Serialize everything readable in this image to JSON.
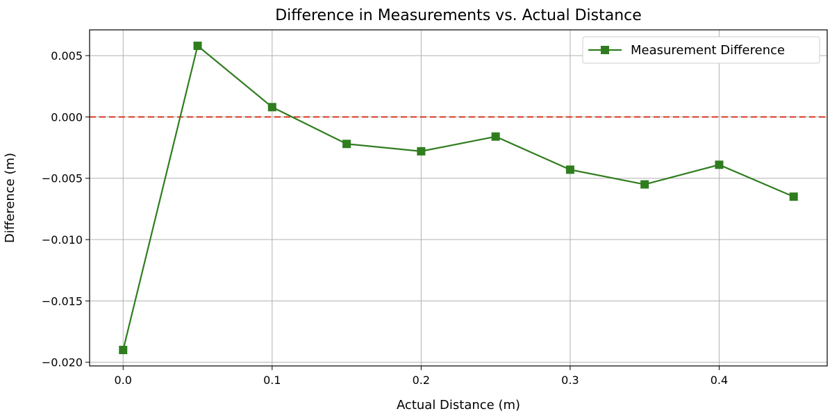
{
  "chart_data": {
    "type": "line",
    "title": "Difference in Measurements vs. Actual Distance",
    "xlabel": "Actual Distance (m)",
    "ylabel": "Difference (m)",
    "xlim": [
      -0.0225,
      0.4725
    ],
    "ylim": [
      -0.0203,
      0.0071
    ],
    "xticks": [
      0.0,
      0.1,
      0.2,
      0.3,
      0.4
    ],
    "xtick_labels": [
      "0.0",
      "0.1",
      "0.2",
      "0.3",
      "0.4"
    ],
    "yticks": [
      0.005,
      0.0,
      -0.005,
      -0.01,
      -0.015,
      -0.02
    ],
    "ytick_labels": [
      "0.005",
      "0.000",
      "−0.005",
      "−0.010",
      "−0.015",
      "−0.020"
    ],
    "grid": true,
    "legend_position": "top-right",
    "reference_line": {
      "y": 0.0,
      "style": "dashed",
      "color": "#d9412b"
    },
    "series": [
      {
        "name": "Measurement Difference",
        "color": "#2f7d1f",
        "marker": "square",
        "x": [
          0.0,
          0.05,
          0.1,
          0.15,
          0.2,
          0.25,
          0.3,
          0.35,
          0.4,
          0.45
        ],
        "y": [
          -0.019,
          0.0058,
          0.0008,
          -0.0022,
          -0.0028,
          -0.0016,
          -0.0043,
          -0.0055,
          -0.0039,
          -0.0065
        ]
      }
    ]
  }
}
